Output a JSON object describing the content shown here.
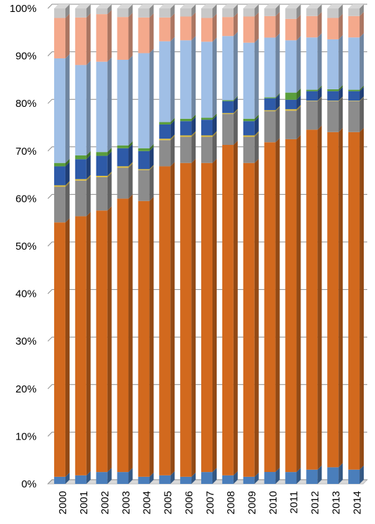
{
  "chart_data": {
    "type": "bar",
    "stacked": true,
    "percent": true,
    "categories": [
      "2000",
      "2001",
      "2002",
      "2003",
      "2004",
      "2005",
      "2006",
      "2007",
      "2008",
      "2009",
      "2010",
      "2011",
      "2012",
      "2013",
      "2014"
    ],
    "ylim": [
      0,
      100
    ],
    "yticks": [
      "0%",
      "10%",
      "20%",
      "30%",
      "40%",
      "50%",
      "60%",
      "70%",
      "80%",
      "90%",
      "100%"
    ],
    "grid": true,
    "legend": "none",
    "series": [
      {
        "color": "#4a7ebb",
        "values": [
          1.5,
          1.8,
          2.5,
          2.5,
          1.5,
          1.8,
          1.5,
          2.5,
          1.8,
          1.5,
          2.5,
          2.5,
          3.0,
          3.5,
          3.0
        ]
      },
      {
        "color": "#d2691e",
        "values": [
          53.5,
          54.5,
          55.0,
          57.5,
          58.0,
          65.0,
          66.0,
          65.0,
          69.5,
          66.0,
          69.0,
          70.0,
          71.5,
          70.5,
          71.0
        ]
      },
      {
        "color": "#8c8c8c",
        "values": [
          7.5,
          7.5,
          7.0,
          6.5,
          6.5,
          5.5,
          5.5,
          5.5,
          6.5,
          5.5,
          6.5,
          6.0,
          6.0,
          6.5,
          6.5
        ]
      },
      {
        "color": "#e0c040",
        "values": [
          0.3,
          0.3,
          0.3,
          0.3,
          0.2,
          0.3,
          0.3,
          0.3,
          0.2,
          0.3,
          0.2,
          0.3,
          0.1,
          0.1,
          0.1
        ]
      },
      {
        "color": "#2e5aa8",
        "values": [
          4.0,
          4.2,
          4.2,
          3.8,
          3.8,
          3.0,
          3.0,
          3.3,
          2.5,
          3.0,
          2.5,
          2.0,
          2.0,
          2.0,
          2.0
        ]
      },
      {
        "color": "#5a9e3c",
        "values": [
          0.7,
          0.8,
          0.8,
          0.6,
          0.6,
          0.5,
          0.5,
          0.4,
          0.2,
          0.5,
          0.2,
          1.5,
          0.3,
          0.4,
          0.3
        ]
      },
      {
        "color": "#a0bfe6",
        "values": [
          22.0,
          19.0,
          19.0,
          18.0,
          20.0,
          17.0,
          16.5,
          16.0,
          13.5,
          16.0,
          12.5,
          11.0,
          11.0,
          10.5,
          11.0
        ]
      },
      {
        "color": "#f4a98c",
        "values": [
          8.5,
          10.0,
          10.0,
          9.0,
          7.5,
          5.0,
          5.0,
          5.0,
          4.0,
          5.5,
          4.5,
          4.5,
          4.5,
          4.5,
          4.5
        ]
      },
      {
        "color": "#c8c8c8",
        "values": [
          2.0,
          1.9,
          1.2,
          1.8,
          1.9,
          1.9,
          1.7,
          2.0,
          1.8,
          1.7,
          1.6,
          2.2,
          1.6,
          2.0,
          1.6
        ]
      }
    ]
  }
}
